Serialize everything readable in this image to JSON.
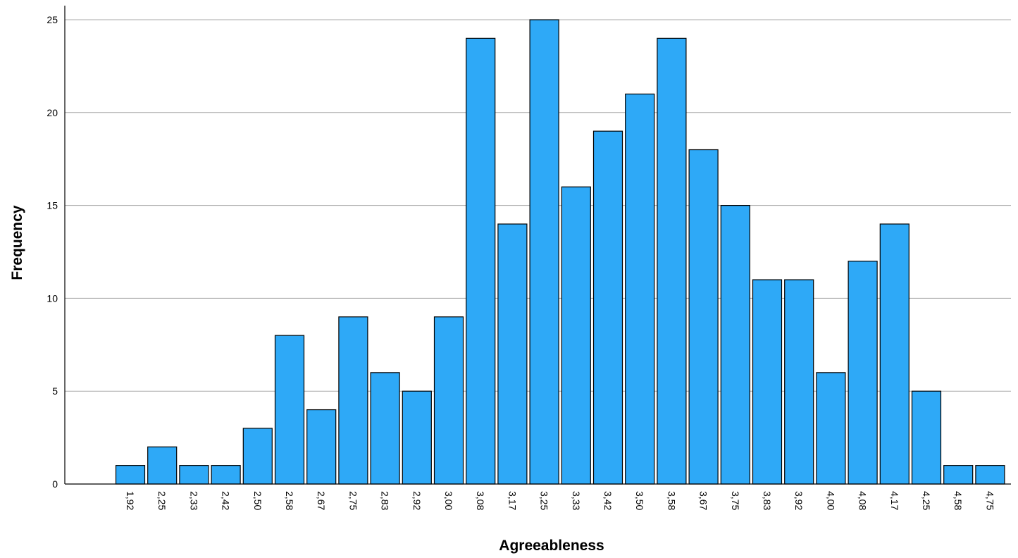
{
  "chart_data": {
    "type": "bar",
    "title": "",
    "xlabel": "Agreeableness",
    "ylabel": "Frequency",
    "categories": [
      "1,92",
      "2,25",
      "2,33",
      "2,42",
      "2,50",
      "2,58",
      "2,67",
      "2,75",
      "2,83",
      "2,92",
      "3,00",
      "3,08",
      "3,17",
      "3,25",
      "3,33",
      "3,42",
      "3,50",
      "3,58",
      "3,67",
      "3,75",
      "3,83",
      "3,92",
      "4,00",
      "4,08",
      "4,17",
      "4,25",
      "4,58",
      "4,75"
    ],
    "values": [
      1,
      2,
      1,
      1,
      3,
      8,
      4,
      9,
      6,
      5,
      9,
      24,
      14,
      25,
      16,
      19,
      21,
      24,
      18,
      15,
      11,
      11,
      6,
      12,
      14,
      5,
      1,
      1
    ],
    "ylim": [
      0,
      25
    ],
    "yticks": [
      "0",
      "5",
      "10",
      "15",
      "20",
      "25"
    ],
    "grid": true,
    "legend": "none",
    "bar_color": "#2ea9f7",
    "grid_color": "#a9a9a9"
  }
}
